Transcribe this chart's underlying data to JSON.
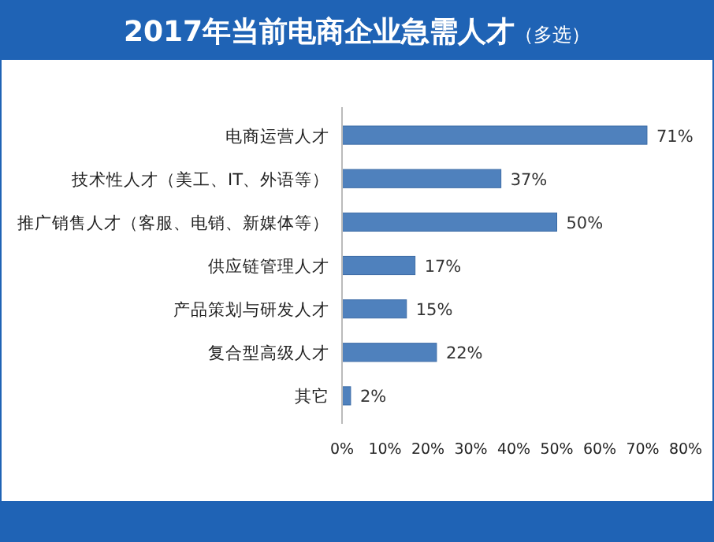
{
  "chart_data": {
    "type": "bar",
    "orientation": "horizontal",
    "title": "2017年当前电商企业急需人才",
    "subtitle": "（多选）",
    "categories": [
      "电商运营人才",
      "技术性人才（美工、IT、外语等）",
      "推广销售人才（客服、电销、新媒体等）",
      "供应链管理人才",
      "产品策划与研发人才",
      "复合型高级人才",
      "其它"
    ],
    "values": [
      71,
      37,
      50,
      17,
      15,
      22,
      2
    ],
    "value_labels": [
      "71%",
      "37%",
      "50%",
      "17%",
      "15%",
      "22%",
      "2%"
    ],
    "color": "#4f81bd",
    "xlim": [
      0,
      80
    ],
    "xticks": [
      {
        "value": 0,
        "label": "0%"
      },
      {
        "value": 10,
        "label": "10%"
      },
      {
        "value": 20,
        "label": "20%"
      },
      {
        "value": 30,
        "label": "30%"
      },
      {
        "value": 40,
        "label": "40%"
      },
      {
        "value": 50,
        "label": "50%"
      },
      {
        "value": 60,
        "label": "60%"
      },
      {
        "value": 70,
        "label": "70%"
      },
      {
        "value": 80,
        "label": "80%"
      }
    ],
    "grid": false
  }
}
